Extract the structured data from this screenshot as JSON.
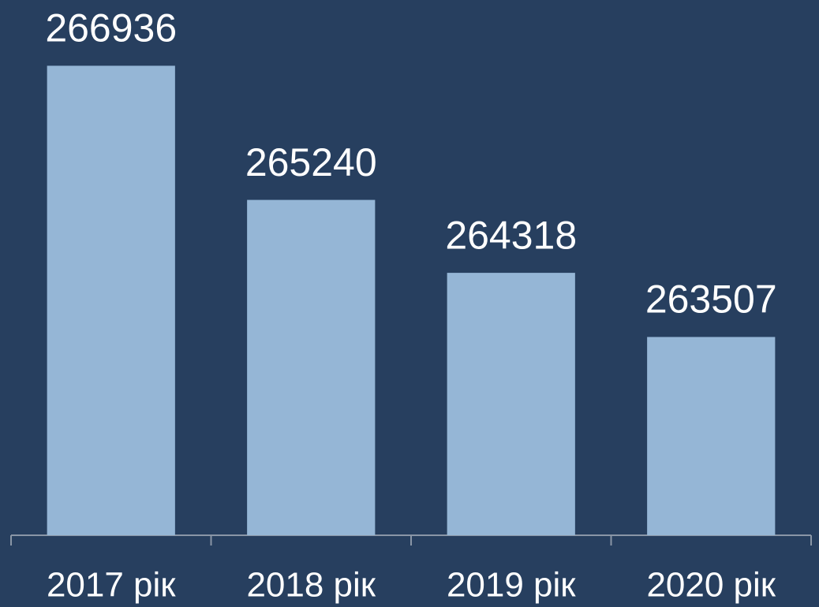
{
  "chart_data": {
    "type": "bar",
    "categories": [
      "2017 рік",
      "2018 рік",
      "2019 рік",
      "2020 рік"
    ],
    "values": [
      266936,
      265240,
      264318,
      263507
    ],
    "color": "#95b6d6",
    "ylim": [
      261000,
      267000
    ]
  }
}
